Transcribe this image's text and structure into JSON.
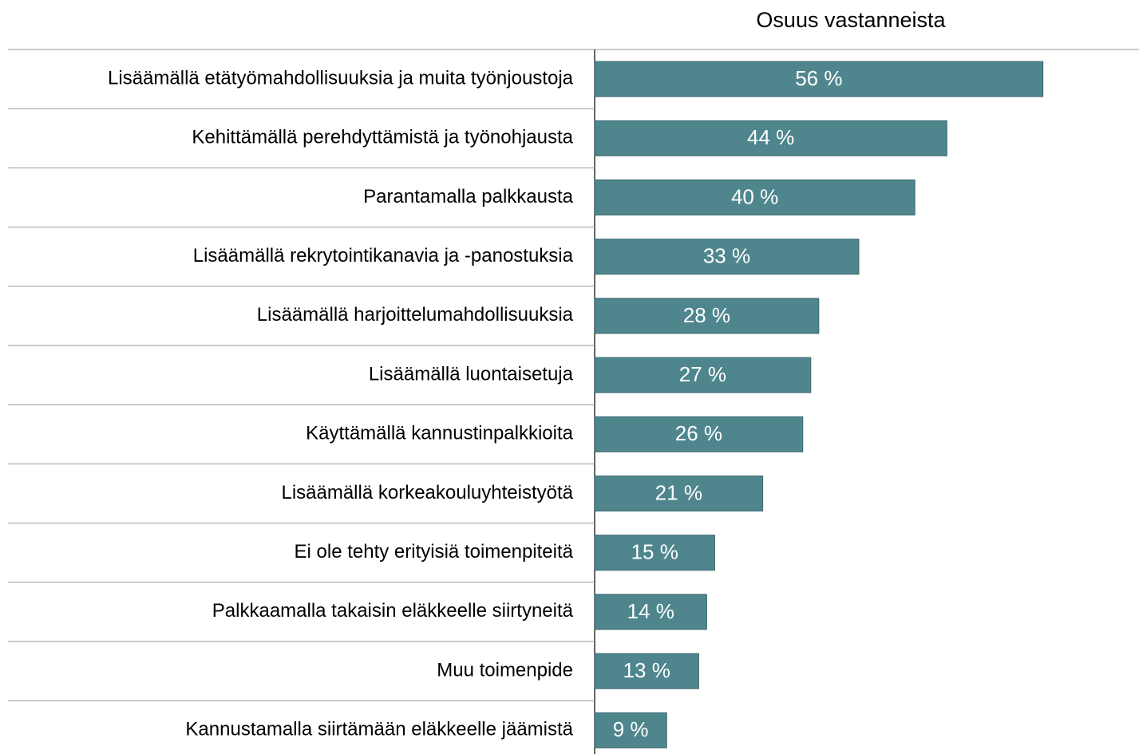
{
  "chart_data": {
    "type": "bar",
    "orientation": "horizontal",
    "axis_title": "Osuus vastanneista",
    "categories": [
      "Lisäämällä etätyömahdollisuuksia ja muita työnjoustoja",
      "Kehittämällä perehdyttämistä ja työnohjausta",
      "Parantamalla palkkausta",
      "Lisäämällä rekrytointikanavia ja -panostuksia",
      "Lisäämällä harjoittelumahdollisuuksia",
      "Lisäämällä luontaisetuja",
      "Käyttämällä kannustinpalkkioita",
      "Lisäämällä korkeakouluyhteistyötä",
      "Ei ole tehty erityisiä toimenpiteitä",
      "Palkkaamalla takaisin eläkkeelle siirtyneitä",
      "Muu toimenpide",
      "Kannustamalla siirtämään eläkkeelle jäämistä"
    ],
    "values": [
      56,
      44,
      40,
      33,
      28,
      27,
      26,
      21,
      15,
      14,
      13,
      9
    ],
    "value_labels": [
      "56 %",
      "44 %",
      "40 %",
      "33 %",
      "28 %",
      "27 %",
      "26 %",
      "21 %",
      "15 %",
      "14 %",
      "13 %",
      "9 %"
    ],
    "color": "#4f868e",
    "xlim": [
      0,
      68
    ]
  }
}
